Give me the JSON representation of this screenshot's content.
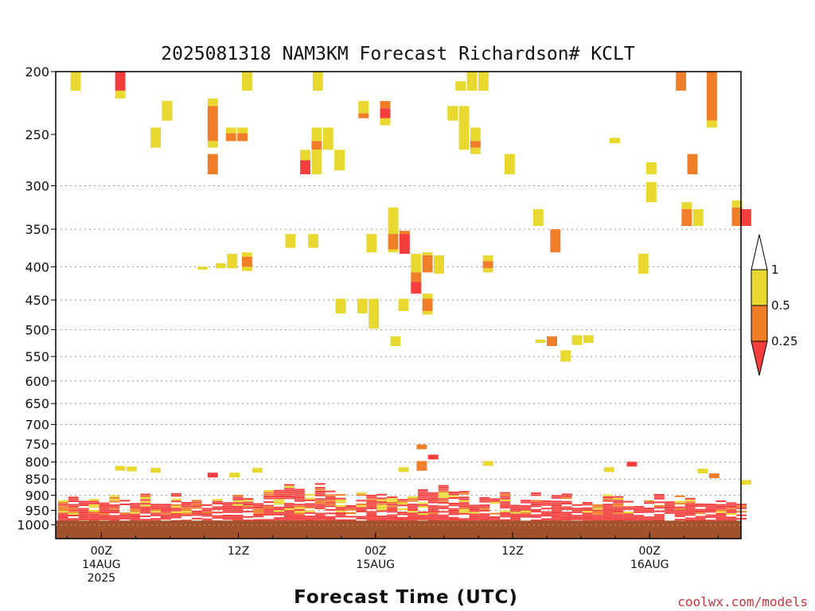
{
  "chart_data": {
    "type": "heatmap",
    "title": "2025081318 NAM3KM Forecast Richardson# KCLT",
    "xlabel": "Forecast Time (UTC)",
    "ylabel": "",
    "credit": "coolwx.com/models",
    "x_axis": {
      "unit": "hours since 2025-08-13 18Z",
      "range": [
        -4,
        56
      ],
      "ticks": [
        {
          "x": 0,
          "lines": [
            "00Z",
            "14AUG",
            "2025"
          ]
        },
        {
          "x": 12,
          "lines": [
            "12Z"
          ]
        },
        {
          "x": 24,
          "lines": [
            "00Z",
            "15AUG"
          ]
        },
        {
          "x": 36,
          "lines": [
            "12Z"
          ]
        },
        {
          "x": 48,
          "lines": [
            "00Z",
            "16AUG"
          ]
        }
      ]
    },
    "y_axis": {
      "unit": "hPa",
      "scale": "log",
      "range": [
        200,
        1050
      ],
      "ticks": [
        200,
        250,
        300,
        350,
        400,
        450,
        500,
        550,
        600,
        650,
        700,
        750,
        800,
        850,
        900,
        950,
        1000
      ],
      "grid_levels": [
        300,
        350,
        400,
        450,
        500,
        550,
        600,
        650,
        700,
        750,
        800,
        850,
        900,
        950,
        1000
      ]
    },
    "legend": {
      "placement": "right",
      "tick_labels": [
        "1",
        "0.5",
        "0.25"
      ],
      "bins": [
        {
          "range": "> 1",
          "color": "#ffffff"
        },
        {
          "range": "0.5 - 1",
          "color": "#e8d830"
        },
        {
          "range": "0.25 - 0.5",
          "color": "#f07d28"
        },
        {
          "range": "< 0.25",
          "color": "#f43d3d"
        }
      ]
    },
    "ground_color": "#a0522d",
    "ground_level": 985,
    "cells": [
      {
        "x": -2.7,
        "p1": 200,
        "p2": 214,
        "c": "y"
      },
      {
        "x": 1.2,
        "p1": 200,
        "p2": 214,
        "c": "r"
      },
      {
        "x": 1.2,
        "p1": 214,
        "p2": 220,
        "c": "y"
      },
      {
        "x": 12.3,
        "p1": 200,
        "p2": 214,
        "c": "y"
      },
      {
        "x": 18.5,
        "p1": 200,
        "p2": 214,
        "c": "y"
      },
      {
        "x": 31.0,
        "p1": 207,
        "p2": 214,
        "c": "y"
      },
      {
        "x": 32.0,
        "p1": 200,
        "p2": 214,
        "c": "y"
      },
      {
        "x": 33.0,
        "p1": 200,
        "p2": 214,
        "c": "y"
      },
      {
        "x": 50.3,
        "p1": 200,
        "p2": 214,
        "c": "o"
      },
      {
        "x": 53.0,
        "p1": 200,
        "p2": 238,
        "c": "o"
      },
      {
        "x": 53.0,
        "p1": 238,
        "p2": 244,
        "c": "y"
      },
      {
        "x": 5.3,
        "p1": 222,
        "p2": 238,
        "c": "o"
      },
      {
        "x": 5.3,
        "p1": 222,
        "p2": 238,
        "c": "y"
      },
      {
        "x": 4.3,
        "p1": 244,
        "p2": 262,
        "c": "y"
      },
      {
        "x": 9.3,
        "p1": 220,
        "p2": 226,
        "c": "y"
      },
      {
        "x": 9.3,
        "p1": 226,
        "p2": 256,
        "c": "o"
      },
      {
        "x": 9.3,
        "p1": 256,
        "p2": 262,
        "c": "y"
      },
      {
        "x": 9.3,
        "p1": 268,
        "p2": 288,
        "c": "o"
      },
      {
        "x": 10.3,
        "p1": 200,
        "p2": 200,
        "c": "w"
      },
      {
        "x": 10.9,
        "p1": 244,
        "p2": 249,
        "c": "y"
      },
      {
        "x": 11.9,
        "p1": 244,
        "p2": 249,
        "c": "y"
      },
      {
        "x": 10.9,
        "p1": 249,
        "p2": 256,
        "c": "o"
      },
      {
        "x": 11.9,
        "p1": 249,
        "p2": 256,
        "c": "o"
      },
      {
        "x": 22.5,
        "p1": 222,
        "p2": 232,
        "c": "y"
      },
      {
        "x": 22.5,
        "p1": 232,
        "p2": 236,
        "c": "o"
      },
      {
        "x": 24.4,
        "p1": 222,
        "p2": 228,
        "c": "o"
      },
      {
        "x": 24.4,
        "p1": 228,
        "p2": 236,
        "c": "r"
      },
      {
        "x": 24.4,
        "p1": 236,
        "p2": 242,
        "c": "y"
      },
      {
        "x": 30.3,
        "p1": 226,
        "p2": 238,
        "c": "y"
      },
      {
        "x": 31.3,
        "p1": 226,
        "p2": 238,
        "c": "y"
      },
      {
        "x": 31.3,
        "p1": 238,
        "p2": 264,
        "c": "y"
      },
      {
        "x": 32.3,
        "p1": 244,
        "p2": 256,
        "c": "y"
      },
      {
        "x": 32.3,
        "p1": 256,
        "p2": 262,
        "c": "o"
      },
      {
        "x": 32.3,
        "p1": 262,
        "p2": 268,
        "c": "y"
      },
      {
        "x": 35.3,
        "p1": 268,
        "p2": 288,
        "c": "y"
      },
      {
        "x": 17.4,
        "p1": 264,
        "p2": 274,
        "c": "y"
      },
      {
        "x": 17.4,
        "p1": 274,
        "p2": 288,
        "c": "r"
      },
      {
        "x": 18.4,
        "p1": 244,
        "p2": 256,
        "c": "y"
      },
      {
        "x": 18.4,
        "p1": 256,
        "p2": 264,
        "c": "o"
      },
      {
        "x": 18.4,
        "p1": 264,
        "p2": 288,
        "c": "y"
      },
      {
        "x": 19.4,
        "p1": 244,
        "p2": 264,
        "c": "y"
      },
      {
        "x": 20.4,
        "p1": 264,
        "p2": 284,
        "c": "y"
      },
      {
        "x": 44.5,
        "p1": 253,
        "p2": 258,
        "c": "y"
      },
      {
        "x": 47.7,
        "p1": 276,
        "p2": 288,
        "c": "y"
      },
      {
        "x": 51.3,
        "p1": 268,
        "p2": 288,
        "c": "o"
      },
      {
        "x": 47.7,
        "p1": 296,
        "p2": 318,
        "c": "y"
      },
      {
        "x": 50.8,
        "p1": 318,
        "p2": 326,
        "c": "y"
      },
      {
        "x": 50.8,
        "p1": 326,
        "p2": 346,
        "c": "o"
      },
      {
        "x": 51.8,
        "p1": 326,
        "p2": 346,
        "c": "y"
      },
      {
        "x": 55.2,
        "p1": 316,
        "p2": 324,
        "c": "y"
      },
      {
        "x": 55.2,
        "p1": 324,
        "p2": 346,
        "c": "o"
      },
      {
        "x": 56.0,
        "p1": 326,
        "p2": 346,
        "c": "r"
      },
      {
        "x": 37.8,
        "p1": 326,
        "p2": 346,
        "c": "y"
      },
      {
        "x": 39.3,
        "p1": 350,
        "p2": 380,
        "c": "o"
      },
      {
        "x": 16.1,
        "p1": 356,
        "p2": 374,
        "c": "y"
      },
      {
        "x": 18.1,
        "p1": 356,
        "p2": 374,
        "c": "y"
      },
      {
        "x": 23.2,
        "p1": 356,
        "p2": 380,
        "c": "y"
      },
      {
        "x": 25.1,
        "p1": 324,
        "p2": 356,
        "c": "y"
      },
      {
        "x": 25.1,
        "p1": 356,
        "p2": 376,
        "c": "o"
      },
      {
        "x": 25.1,
        "p1": 376,
        "p2": 380,
        "c": "y"
      },
      {
        "x": 26.1,
        "p1": 352,
        "p2": 356,
        "c": "o"
      },
      {
        "x": 26.1,
        "p1": 356,
        "p2": 382,
        "c": "r"
      },
      {
        "x": 27.1,
        "p1": 382,
        "p2": 408,
        "c": "y"
      },
      {
        "x": 27.1,
        "p1": 408,
        "p2": 422,
        "c": "o"
      },
      {
        "x": 27.1,
        "p1": 422,
        "p2": 440,
        "c": "r"
      },
      {
        "x": 28.1,
        "p1": 380,
        "p2": 384,
        "c": "y"
      },
      {
        "x": 28.1,
        "p1": 384,
        "p2": 408,
        "c": "o"
      },
      {
        "x": 29.1,
        "p1": 384,
        "p2": 410,
        "c": "y"
      },
      {
        "x": 28.1,
        "p1": 440,
        "p2": 448,
        "c": "y"
      },
      {
        "x": 28.1,
        "p1": 448,
        "p2": 468,
        "c": "o"
      },
      {
        "x": 28.1,
        "p1": 468,
        "p2": 474,
        "c": "y"
      },
      {
        "x": 26.0,
        "p1": 448,
        "p2": 468,
        "c": "y"
      },
      {
        "x": 12.3,
        "p1": 380,
        "p2": 386,
        "c": "y"
      },
      {
        "x": 12.3,
        "p1": 386,
        "p2": 400,
        "c": "o"
      },
      {
        "x": 12.3,
        "p1": 400,
        "p2": 406,
        "c": "y"
      },
      {
        "x": 11.0,
        "p1": 382,
        "p2": 402,
        "c": "y"
      },
      {
        "x": 10.0,
        "p1": 395,
        "p2": 402,
        "c": "y"
      },
      {
        "x": 8.4,
        "p1": 400,
        "p2": 404,
        "c": "y"
      },
      {
        "x": 33.4,
        "p1": 384,
        "p2": 392,
        "c": "y"
      },
      {
        "x": 33.4,
        "p1": 392,
        "p2": 402,
        "c": "o"
      },
      {
        "x": 33.4,
        "p1": 402,
        "p2": 408,
        "c": "y"
      },
      {
        "x": 47.0,
        "p1": 382,
        "p2": 410,
        "c": "y"
      },
      {
        "x": 20.5,
        "p1": 448,
        "p2": 472,
        "c": "y"
      },
      {
        "x": 22.4,
        "p1": 448,
        "p2": 472,
        "c": "y"
      },
      {
        "x": 23.4,
        "p1": 448,
        "p2": 472,
        "c": "y"
      },
      {
        "x": 23.4,
        "p1": 472,
        "p2": 498,
        "c": "y"
      },
      {
        "x": 25.3,
        "p1": 512,
        "p2": 530,
        "c": "y"
      },
      {
        "x": 38.0,
        "p1": 518,
        "p2": 524,
        "c": "y"
      },
      {
        "x": 39.0,
        "p1": 512,
        "p2": 530,
        "c": "o"
      },
      {
        "x": 40.2,
        "p1": 538,
        "p2": 560,
        "c": "y"
      },
      {
        "x": 41.2,
        "p1": 510,
        "p2": 528,
        "c": "y"
      },
      {
        "x": 42.2,
        "p1": 510,
        "p2": 524,
        "c": "y"
      }
    ],
    "low_cells": [
      {
        "x": 1.2,
        "p": 818,
        "c": "y"
      },
      {
        "x": 2.2,
        "p": 820,
        "c": "y"
      },
      {
        "x": 4.3,
        "p": 824,
        "c": "y"
      },
      {
        "x": 9.3,
        "p": 838,
        "c": "r"
      },
      {
        "x": 11.2,
        "p": 838,
        "c": "y"
      },
      {
        "x": 13.2,
        "p": 824,
        "c": "y"
      },
      {
        "x": 27.6,
        "p": 758,
        "c": "o"
      },
      {
        "x": 28.6,
        "p": 786,
        "c": "r"
      },
      {
        "x": 27.6,
        "p": 804,
        "c": "o"
      },
      {
        "x": 27.6,
        "p": 818,
        "c": "o"
      },
      {
        "x": 26.0,
        "p": 822,
        "c": "y"
      },
      {
        "x": 33.4,
        "p": 804,
        "c": "y"
      },
      {
        "x": 46.0,
        "p": 806,
        "c": "r"
      },
      {
        "x": 44.0,
        "p": 822,
        "c": "y"
      },
      {
        "x": 52.2,
        "p": 826,
        "c": "y"
      },
      {
        "x": 53.2,
        "p": 840,
        "c": "o"
      },
      {
        "x": 56.0,
        "p": 860,
        "c": "y"
      }
    ]
  }
}
